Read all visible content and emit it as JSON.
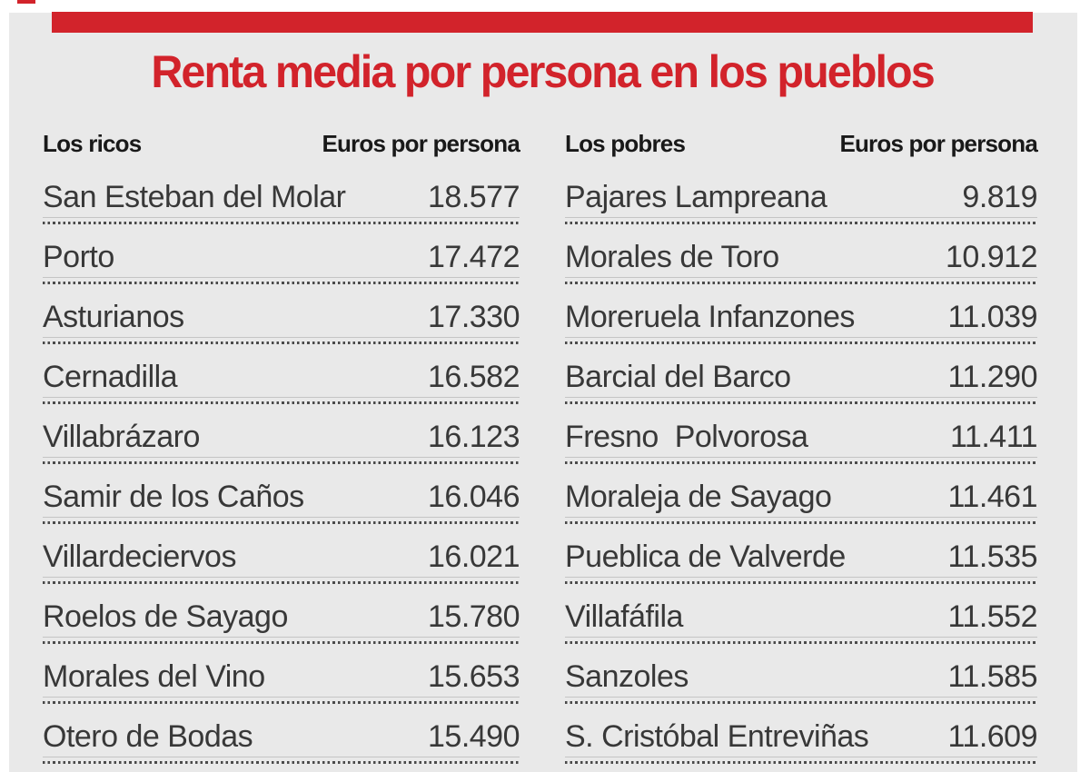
{
  "page": {
    "background_color": "#e9e9e9",
    "accent_color": "#d2232b",
    "text_color": "#383838"
  },
  "title": "Renta media por persona en los pueblos",
  "tables": [
    {
      "id": "ricos",
      "header": {
        "label": "Los ricos",
        "unit": "Euros por persona"
      },
      "rows": [
        {
          "name": "San Esteban del Molar",
          "value": "18.577"
        },
        {
          "name": "Porto",
          "value": "17.472"
        },
        {
          "name": "Asturianos",
          "value": "17.330"
        },
        {
          "name": "Cernadilla",
          "value": "16.582"
        },
        {
          "name": "Villabrázaro",
          "value": "16.123"
        },
        {
          "name": "Samir de los Caños",
          "value": "16.046"
        },
        {
          "name": "Villardeciervos",
          "value": "16.021"
        },
        {
          "name": "Roelos de Sayago",
          "value": "15.780"
        },
        {
          "name": "Morales del Vino",
          "value": "15.653"
        },
        {
          "name": "Otero de Bodas",
          "value": "15.490"
        }
      ]
    },
    {
      "id": "pobres",
      "header": {
        "label": "Los pobres",
        "unit": "Euros por persona"
      },
      "rows": [
        {
          "name": "Pajares Lampreana",
          "value": "9.819"
        },
        {
          "name": "Morales de Toro",
          "value": "10.912"
        },
        {
          "name": "Moreruela Infanzones",
          "value": "11.039"
        },
        {
          "name": "Barcial del Barco",
          "value": "11.290"
        },
        {
          "name": "Fresno  Polvorosa",
          "value": "11.411"
        },
        {
          "name": "Moraleja de Sayago",
          "value": "11.461"
        },
        {
          "name": "Pueblica de Valverde",
          "value": "11.535"
        },
        {
          "name": "Villafáfila",
          "value": "11.552"
        },
        {
          "name": "Sanzoles",
          "value": "11.585"
        },
        {
          "name": "S. Cristóbal Entreviñas",
          "value": "11.609"
        }
      ]
    }
  ],
  "chart_data": {
    "type": "table",
    "title": "Renta media por persona en los pueblos",
    "tables": [
      {
        "name": "Los ricos",
        "value_label": "Euros por persona",
        "rows": [
          [
            "San Esteban del Molar",
            18577
          ],
          [
            "Porto",
            17472
          ],
          [
            "Asturianos",
            17330
          ],
          [
            "Cernadilla",
            16582
          ],
          [
            "Villabrázaro",
            16123
          ],
          [
            "Samir de los Caños",
            16046
          ],
          [
            "Villardeciervos",
            16021
          ],
          [
            "Roelos de Sayago",
            15780
          ],
          [
            "Morales del Vino",
            15653
          ],
          [
            "Otero de Bodas",
            15490
          ]
        ]
      },
      {
        "name": "Los pobres",
        "value_label": "Euros por persona",
        "rows": [
          [
            "Pajares Lampreana",
            9819
          ],
          [
            "Morales de Toro",
            10912
          ],
          [
            "Moreruela Infanzones",
            11039
          ],
          [
            "Barcial del Barco",
            11290
          ],
          [
            "Fresno Polvorosa",
            11411
          ],
          [
            "Moraleja de Sayago",
            11461
          ],
          [
            "Pueblica de Valverde",
            11535
          ],
          [
            "Villafáfila",
            11552
          ],
          [
            "Sanzoles",
            11585
          ],
          [
            "S. Cristóbal Entreviñas",
            11609
          ]
        ]
      }
    ]
  }
}
